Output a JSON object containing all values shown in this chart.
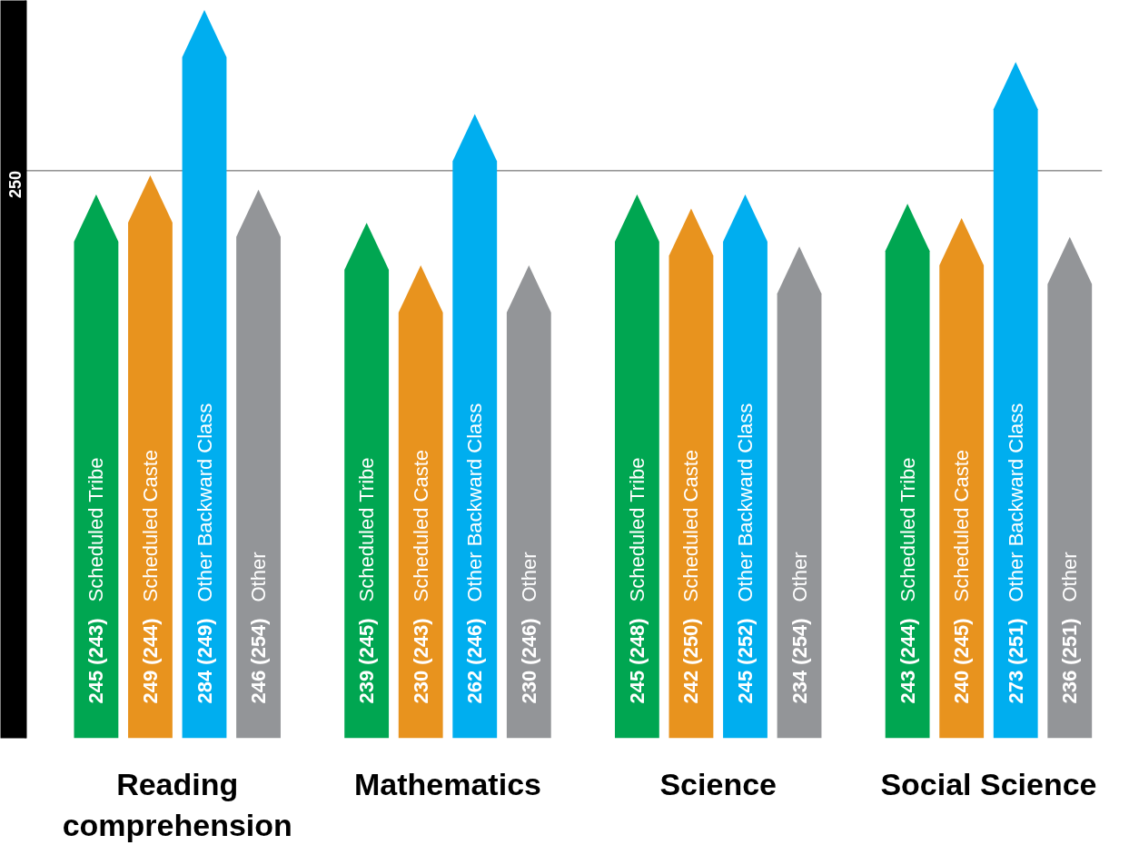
{
  "chart_data": {
    "type": "bar",
    "categories": [
      "Reading comprehension",
      "Mathematics",
      "Science",
      "Social Science"
    ],
    "series": [
      {
        "name": "Scheduled Tribe",
        "color": "#00a651",
        "values": [
          245,
          239,
          245,
          243
        ],
        "value_labels": [
          "245 (243)",
          "239 (245)",
          "245 (248)",
          "243 (244)"
        ]
      },
      {
        "name": "Scheduled Caste",
        "color": "#e8931e",
        "values": [
          249,
          230,
          242,
          240
        ],
        "value_labels": [
          "249 (244)",
          "230 (243)",
          "242 (250)",
          "240 (245)"
        ]
      },
      {
        "name": "Other Backward Class",
        "color": "#00aeef",
        "values": [
          284,
          262,
          245,
          273
        ],
        "value_labels": [
          "284 (249)",
          "262 (246)",
          "245 (252)",
          "273 (251)"
        ]
      },
      {
        "name": "Other",
        "color": "#939598",
        "values": [
          246,
          230,
          234,
          236
        ],
        "value_labels": [
          "246 (254)",
          "230 (246)",
          "234 (254)",
          "236 (251)"
        ]
      }
    ],
    "ylim": [
      130,
      286
    ],
    "legend": false,
    "ref_lines": [
      {
        "axis": "y",
        "value": 250,
        "label": "250",
        "color": "#555555"
      }
    ]
  }
}
